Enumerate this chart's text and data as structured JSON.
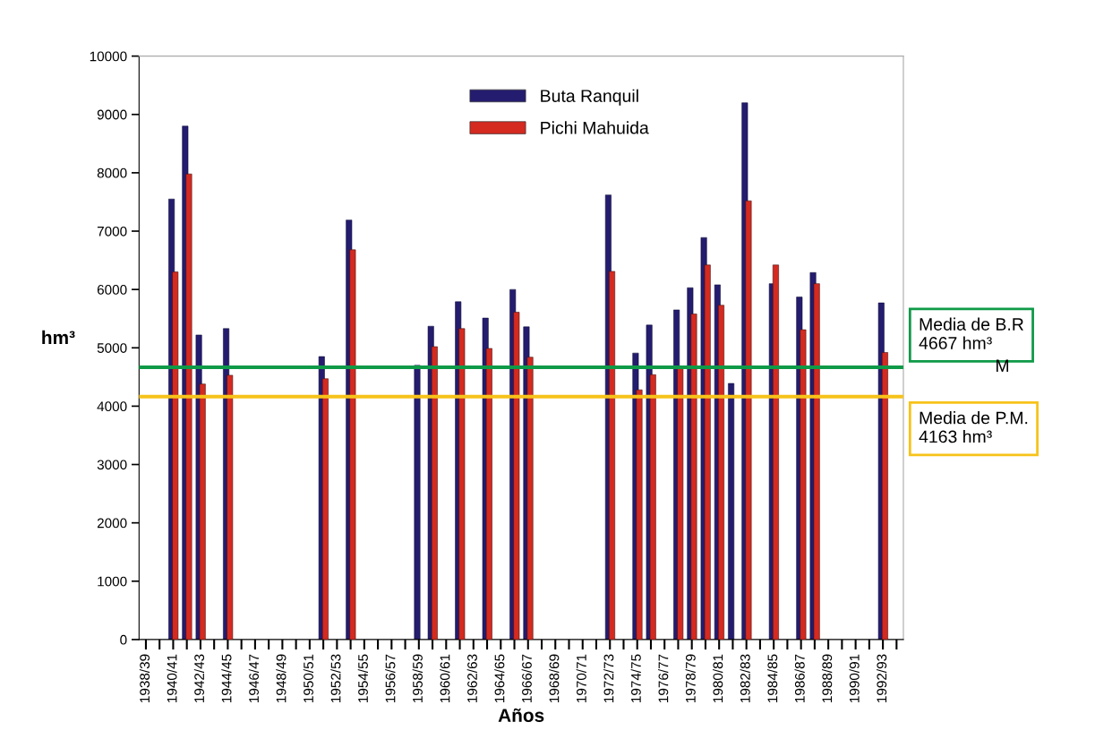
{
  "chart_data": {
    "type": "bar",
    "xlabel": "Años",
    "ylabel": "hm³",
    "categories": [
      "1938/39",
      null,
      "1940/41",
      null,
      "1942/43",
      null,
      "1944/45",
      null,
      "1946/47",
      null,
      "1948/49",
      null,
      "1950/51",
      null,
      "1952/53",
      null,
      "1954/55",
      null,
      "1956/57",
      null,
      "1958/59",
      null,
      "1960/61",
      null,
      "1962/63",
      null,
      "1964/65",
      null,
      "1966/67",
      null,
      "1968/69",
      null,
      "1970/71",
      null,
      "1972/73",
      null,
      "1974/75",
      null,
      "1976/77",
      null,
      "1978/79",
      null,
      "1980/81",
      null,
      "1982/83",
      null,
      "1984/85",
      null,
      "1986/87",
      null,
      "1988/89",
      null,
      "1990/91",
      null,
      "1992/93",
      null
    ],
    "series": [
      {
        "name": "Buta Ranquil",
        "color": "#241c6e",
        "values": [
          null,
          null,
          7550,
          8800,
          5220,
          null,
          5330,
          null,
          null,
          null,
          null,
          null,
          null,
          4850,
          null,
          7190,
          null,
          null,
          null,
          null,
          4700,
          5370,
          null,
          5790,
          null,
          5510,
          null,
          6000,
          5360,
          null,
          null,
          null,
          null,
          null,
          7620,
          null,
          4910,
          5390,
          null,
          5650,
          6030,
          6890,
          6080,
          4390,
          9200,
          null,
          6100,
          null,
          5870,
          6290,
          null,
          null,
          null,
          null,
          5770,
          null
        ]
      },
      {
        "name": "Pichi Mahuida",
        "color": "#d42a20",
        "values": [
          null,
          null,
          6300,
          7980,
          4380,
          null,
          4530,
          null,
          null,
          null,
          null,
          null,
          null,
          4470,
          null,
          6680,
          null,
          null,
          null,
          null,
          null,
          5020,
          null,
          5330,
          null,
          4990,
          null,
          5610,
          4840,
          null,
          null,
          null,
          null,
          null,
          6310,
          null,
          4280,
          4540,
          null,
          4670,
          5580,
          6420,
          5730,
          null,
          7520,
          null,
          6420,
          null,
          5310,
          6100,
          null,
          null,
          null,
          null,
          4920,
          null
        ]
      }
    ],
    "ylim": [
      0,
      10000
    ],
    "yticks": [
      0,
      1000,
      2000,
      3000,
      4000,
      5000,
      6000,
      7000,
      8000,
      9000,
      10000
    ],
    "ref_lines": [
      {
        "axis": "y",
        "value": 4667,
        "label": "Media de B.R\n4667 hm³",
        "color": "#0f9a48"
      },
      {
        "axis": "y",
        "value": 4163,
        "label": "Media de P.M.\n4163 hm³",
        "color": "#f7c31a"
      }
    ],
    "annotations": [
      "M"
    ],
    "legend": "top",
    "grid": false
  }
}
